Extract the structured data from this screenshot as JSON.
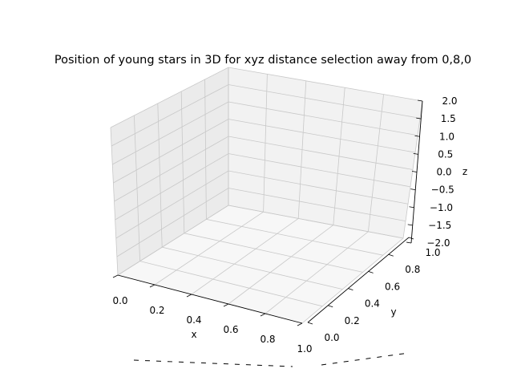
{
  "chart_data": {
    "type": "scatter",
    "projection": "3d",
    "title": "Position of young stars in 3D for xyz distance selection away from 0,8,0",
    "xlabel": "x",
    "ylabel": "y",
    "zlabel": "z",
    "xlim": [
      0,
      1
    ],
    "ylim": [
      0,
      1
    ],
    "zlim": [
      -2,
      2
    ],
    "x_ticks": [
      "0.0",
      "0.2",
      "0.4",
      "0.6",
      "0.8",
      "1.0"
    ],
    "y_ticks": [
      "0.0",
      "0.2",
      "0.4",
      "0.6",
      "0.8",
      "1.0"
    ],
    "z_ticks": [
      "−2.0",
      "−1.5",
      "−1.0",
      "−0.5",
      "0.0",
      "0.5",
      "1.0",
      "1.5",
      "2.0"
    ],
    "grid": true,
    "points": [],
    "colors": {
      "pane_back": "#f2f2f2",
      "pane_side": "#ebebeb",
      "pane_floor": "#f7f7f7",
      "grid": "#c8c8c8",
      "edge": "#000000"
    }
  }
}
